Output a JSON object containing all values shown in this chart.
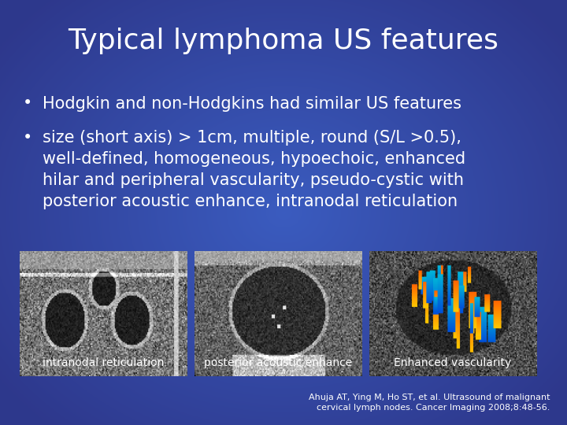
{
  "title": "Typical lymphoma US features",
  "bullet1": "Hodgkin and non-Hodgkins had similar US features",
  "bullet2_line1": "size (short axis) > 1cm, multiple, round (S/L >0.5),",
  "bullet2_line2": "well-defined, homogeneous, hypoechoic, enhanced",
  "bullet2_line3": "hilar and peripheral vascularity, pseudo-cystic with",
  "bullet2_line4": "posterior acoustic enhance, intranodal reticulation",
  "caption1": "intranodal reticulation",
  "caption2": "posterior acoustic enhance",
  "caption3": "Enhanced vascularity",
  "reference": "Ahuja AT, Ying M, Ho ST, et al. Ultrasound of malignant\ncervical lymph nodes. Cancer Imaging 2008;8:48-56.",
  "text_color": "#ffffff",
  "title_fontsize": 26,
  "bullet_fontsize": 15,
  "caption_fontsize": 10,
  "ref_fontsize": 8,
  "fig_width": 7.2,
  "fig_height": 5.4
}
